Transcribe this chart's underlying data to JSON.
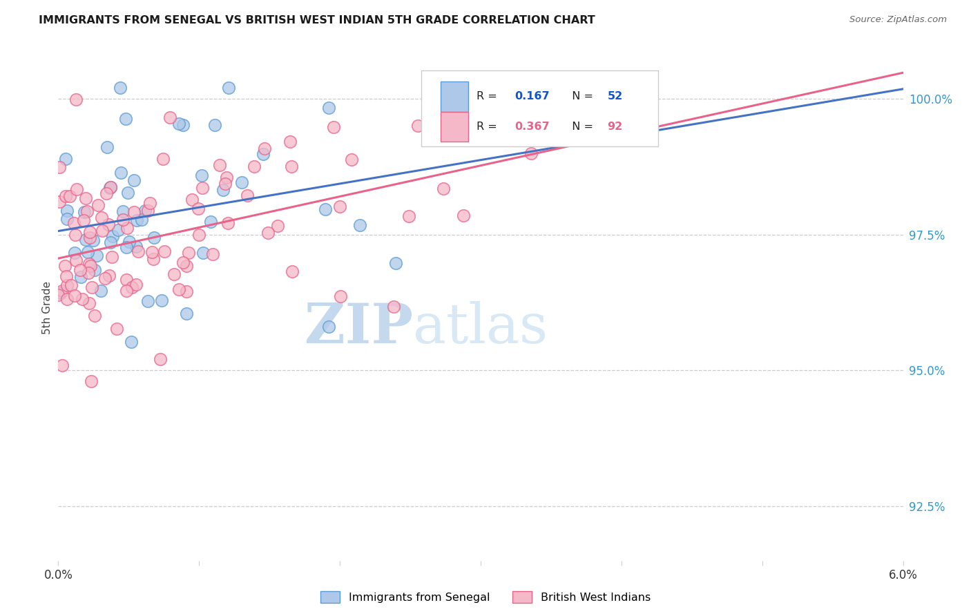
{
  "title": "IMMIGRANTS FROM SENEGAL VS BRITISH WEST INDIAN 5TH GRADE CORRELATION CHART",
  "source": "Source: ZipAtlas.com",
  "ylabel": "5th Grade",
  "yaxis_values": [
    0.925,
    0.95,
    0.975,
    1.0
  ],
  "xmin": 0.0,
  "xmax": 0.06,
  "ymin": 0.915,
  "ymax": 1.008,
  "legend_R1": "0.167",
  "legend_N1": "52",
  "legend_R2": "0.367",
  "legend_N2": "92",
  "blue_fill": "#adc8e8",
  "blue_edge": "#5b9bd5",
  "pink_fill": "#f4b8c8",
  "pink_edge": "#e8628a",
  "blue_line": "#4472c4",
  "pink_line": "#e8628a",
  "grid_color": "#cccccc",
  "watermark_text": "ZIPatlas",
  "watermark_color": "#dce8f5",
  "legend_label_blue": "Immigrants from Senegal",
  "legend_label_pink": "British West Indians",
  "blue_n": 52,
  "pink_n": 92,
  "blue_r": 0.167,
  "pink_r": 0.367
}
